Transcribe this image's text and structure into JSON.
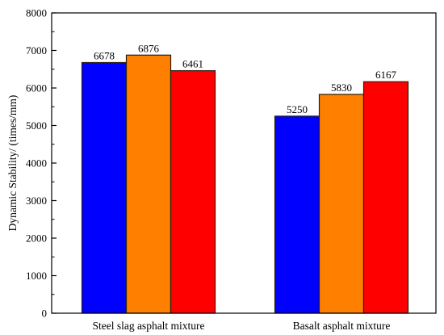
{
  "chart_data": {
    "type": "bar",
    "title": "",
    "xlabel": "",
    "ylabel": "Dynamic Stability/ (times/mm)",
    "ylim": [
      0,
      8000
    ],
    "yticks": [
      0,
      1000,
      2000,
      3000,
      4000,
      5000,
      6000,
      7000,
      8000
    ],
    "categories": [
      "Steel slag asphalt mixture",
      "Basalt asphalt mixture"
    ],
    "series": [
      {
        "values": [
          6678,
          5250
        ],
        "color": "#0000ff"
      },
      {
        "values": [
          6876,
          5830
        ],
        "color": "#ff8000"
      },
      {
        "values": [
          6461,
          6167
        ],
        "color": "#ff0000"
      }
    ],
    "data_labels": [
      [
        "6678",
        "6876",
        "6461"
      ],
      [
        "5250",
        "5830",
        "6167"
      ]
    ],
    "grid": false,
    "legend": "none",
    "bar_edge_color": "#2b1d0e"
  }
}
